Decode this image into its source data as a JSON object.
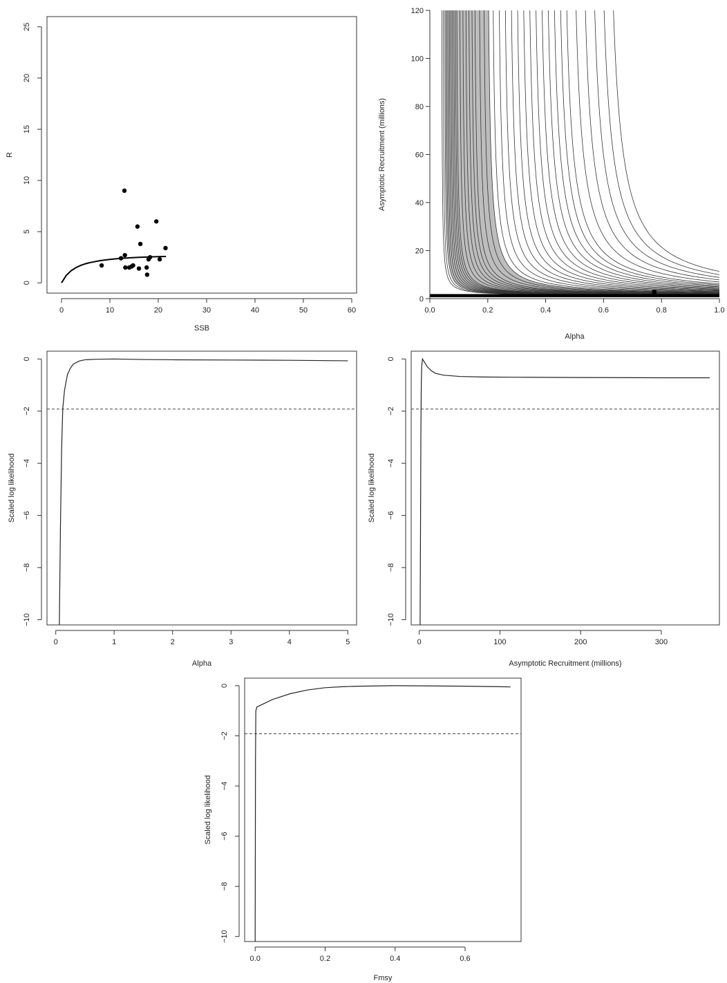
{
  "chart_data": [
    {
      "id": "sr",
      "type": "scatter",
      "xlabel": "SSB",
      "ylabel": "R",
      "xlim": [
        -3,
        61
      ],
      "ylim": [
        -1,
        26
      ],
      "xticks": [
        0,
        10,
        20,
        30,
        40,
        50,
        60
      ],
      "yticks": [
        0,
        5,
        10,
        15,
        20,
        25
      ],
      "points": [
        {
          "x": 8.3,
          "y": 1.7
        },
        {
          "x": 12.3,
          "y": 2.4
        },
        {
          "x": 13.0,
          "y": 9.0
        },
        {
          "x": 13.1,
          "y": 2.7
        },
        {
          "x": 13.2,
          "y": 1.5
        },
        {
          "x": 14.0,
          "y": 1.5
        },
        {
          "x": 14.5,
          "y": 1.6
        },
        {
          "x": 14.8,
          "y": 1.7
        },
        {
          "x": 15.7,
          "y": 5.5
        },
        {
          "x": 16.0,
          "y": 1.4
        },
        {
          "x": 16.3,
          "y": 3.8
        },
        {
          "x": 17.6,
          "y": 1.5
        },
        {
          "x": 17.7,
          "y": 0.8
        },
        {
          "x": 18.0,
          "y": 2.3
        },
        {
          "x": 18.3,
          "y": 2.5
        },
        {
          "x": 19.6,
          "y": 6.0
        },
        {
          "x": 20.3,
          "y": 2.3
        },
        {
          "x": 21.5,
          "y": 3.4
        }
      ],
      "fit_line": {
        "x": [
          0,
          1,
          2,
          3,
          4,
          5,
          6,
          8,
          10,
          12,
          14,
          16,
          18,
          20,
          21.6
        ],
        "y": [
          0,
          0.74,
          1.19,
          1.49,
          1.71,
          1.87,
          1.99,
          2.17,
          2.29,
          2.38,
          2.44,
          2.49,
          2.53,
          2.56,
          2.58
        ]
      }
    },
    {
      "id": "contour",
      "type": "line",
      "xlabel": "Alpha",
      "ylabel": "Asymptotic Recruitment (millions)",
      "xlim": [
        0,
        1
      ],
      "ylim": [
        0,
        120
      ],
      "xticks": [
        0.0,
        0.2,
        0.4,
        0.6,
        0.8,
        1.0
      ],
      "xtick_labels": [
        "0.0",
        "0.2",
        "0.4",
        "0.6",
        "0.8",
        "1.0"
      ],
      "yticks": [
        0,
        20,
        40,
        60,
        80,
        100,
        120
      ],
      "shaded_band": {
        "inner_alpha": 0.05,
        "outer_alpha": 0.195
      },
      "contour_offsets": [
        0.04,
        0.045,
        0.05,
        0.055,
        0.06,
        0.065,
        0.07,
        0.075,
        0.08,
        0.085,
        0.09,
        0.1,
        0.11,
        0.12,
        0.13,
        0.14,
        0.15,
        0.165,
        0.18,
        0.195,
        0.21,
        0.23,
        0.25,
        0.27,
        0.29,
        0.31,
        0.33,
        0.35,
        0.37,
        0.39,
        0.41,
        0.43,
        0.45,
        0.48,
        0.51,
        0.54,
        0.57,
        0.6
      ],
      "marker": {
        "x": 0.775,
        "y": 2.5
      }
    },
    {
      "id": "alpha-profile",
      "type": "line",
      "xlabel": "Alpha",
      "ylabel": "Scaled log likelihood",
      "xlim": [
        -0.15,
        5.15
      ],
      "ylim": [
        -10.2,
        0.3
      ],
      "xticks": [
        0,
        1,
        2,
        3,
        4,
        5
      ],
      "yticks": [
        0,
        -2,
        -4,
        -6,
        -8,
        -10
      ],
      "cutoff": -1.92,
      "x": [
        0.06,
        0.08,
        0.1,
        0.12,
        0.15,
        0.2,
        0.25,
        0.3,
        0.4,
        0.5,
        0.7,
        1.0,
        1.5,
        2.0,
        3.0,
        4.0,
        5.0
      ],
      "y": [
        -10.5,
        -6.5,
        -3.5,
        -1.9,
        -1.2,
        -0.6,
        -0.35,
        -0.2,
        -0.08,
        -0.03,
        -0.01,
        0,
        -0.02,
        -0.03,
        -0.04,
        -0.05,
        -0.07
      ]
    },
    {
      "id": "rasym-profile",
      "type": "line",
      "xlabel": "Asymptotic Recruitment (millions)",
      "ylabel": "Scaled log likelihood",
      "xlim": [
        -10,
        372
      ],
      "ylim": [
        -10.2,
        0.3
      ],
      "xticks": [
        0,
        100,
        200,
        300
      ],
      "yticks": [
        0,
        -2,
        -4,
        -6,
        -8,
        -10
      ],
      "cutoff": -1.92,
      "x": [
        1.0,
        1.5,
        2.0,
        2.5,
        3.0,
        4.0,
        6.0,
        10,
        15,
        20,
        30,
        50,
        80,
        120,
        200,
        300,
        360
      ],
      "y": [
        -10.5,
        -7.0,
        -3.0,
        -1.0,
        -0.3,
        0.0,
        -0.1,
        -0.3,
        -0.45,
        -0.55,
        -0.62,
        -0.67,
        -0.69,
        -0.7,
        -0.71,
        -0.72,
        -0.72
      ]
    },
    {
      "id": "fmsy-profile",
      "type": "line",
      "xlabel": "Fmsy",
      "ylabel": "Scaled log likelihood",
      "xlim": [
        -0.03,
        0.76
      ],
      "ylim": [
        -10.2,
        0.3
      ],
      "xticks": [
        0.0,
        0.2,
        0.4,
        0.6
      ],
      "xtick_labels": [
        "0.0",
        "0.2",
        "0.4",
        "0.6"
      ],
      "yticks": [
        0,
        -2,
        -4,
        -6,
        -8,
        -10
      ],
      "cutoff": -1.92,
      "x": [
        0.0,
        0.001,
        0.002,
        0.005,
        0.02,
        0.05,
        0.1,
        0.15,
        0.2,
        0.25,
        0.3,
        0.4,
        0.5,
        0.6,
        0.7,
        0.73
      ],
      "y": [
        -10.5,
        -3.0,
        -1.0,
        -0.85,
        -0.75,
        -0.55,
        -0.32,
        -0.17,
        -0.08,
        -0.04,
        -0.02,
        0.0,
        -0.01,
        -0.02,
        -0.04,
        -0.05
      ]
    }
  ]
}
